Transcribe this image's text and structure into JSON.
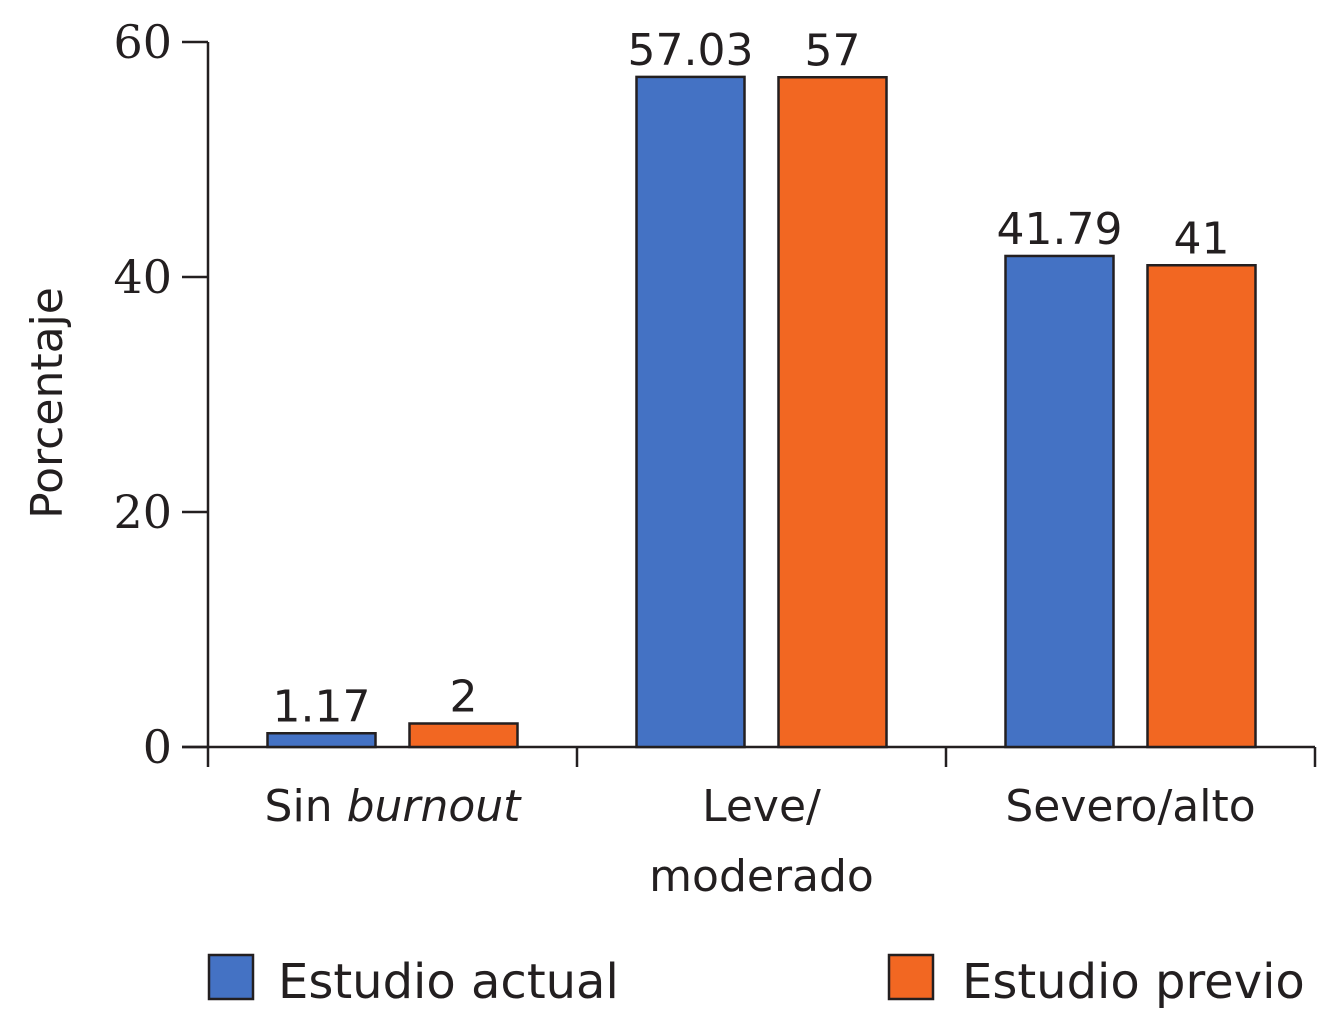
{
  "chart_data": {
    "type": "bar",
    "title": "",
    "xlabel": "",
    "ylabel": "Porcentaje",
    "ylim": [
      0,
      60
    ],
    "yticks": [
      0,
      20,
      40,
      60
    ],
    "categories": [
      {
        "parts": [
          {
            "text": "Sin ",
            "italic": false
          },
          {
            "text": "burnout",
            "italic": true
          }
        ],
        "lines": []
      },
      {
        "parts": [],
        "lines": [
          "Leve/",
          "moderado"
        ]
      },
      {
        "parts": [],
        "lines": [
          "Severo/alto"
        ]
      }
    ],
    "series": [
      {
        "name": "Estudio actual",
        "color": "#4472c4",
        "values": [
          1.17,
          57.03,
          41.79
        ],
        "labels": [
          "1.17",
          "57.03",
          "41.79"
        ]
      },
      {
        "name": "Estudio previo",
        "color": "#f26722",
        "values": [
          2,
          57,
          41
        ],
        "labels": [
          "2",
          "57",
          "41"
        ]
      }
    ],
    "legend_position": "bottom",
    "grid": false
  }
}
